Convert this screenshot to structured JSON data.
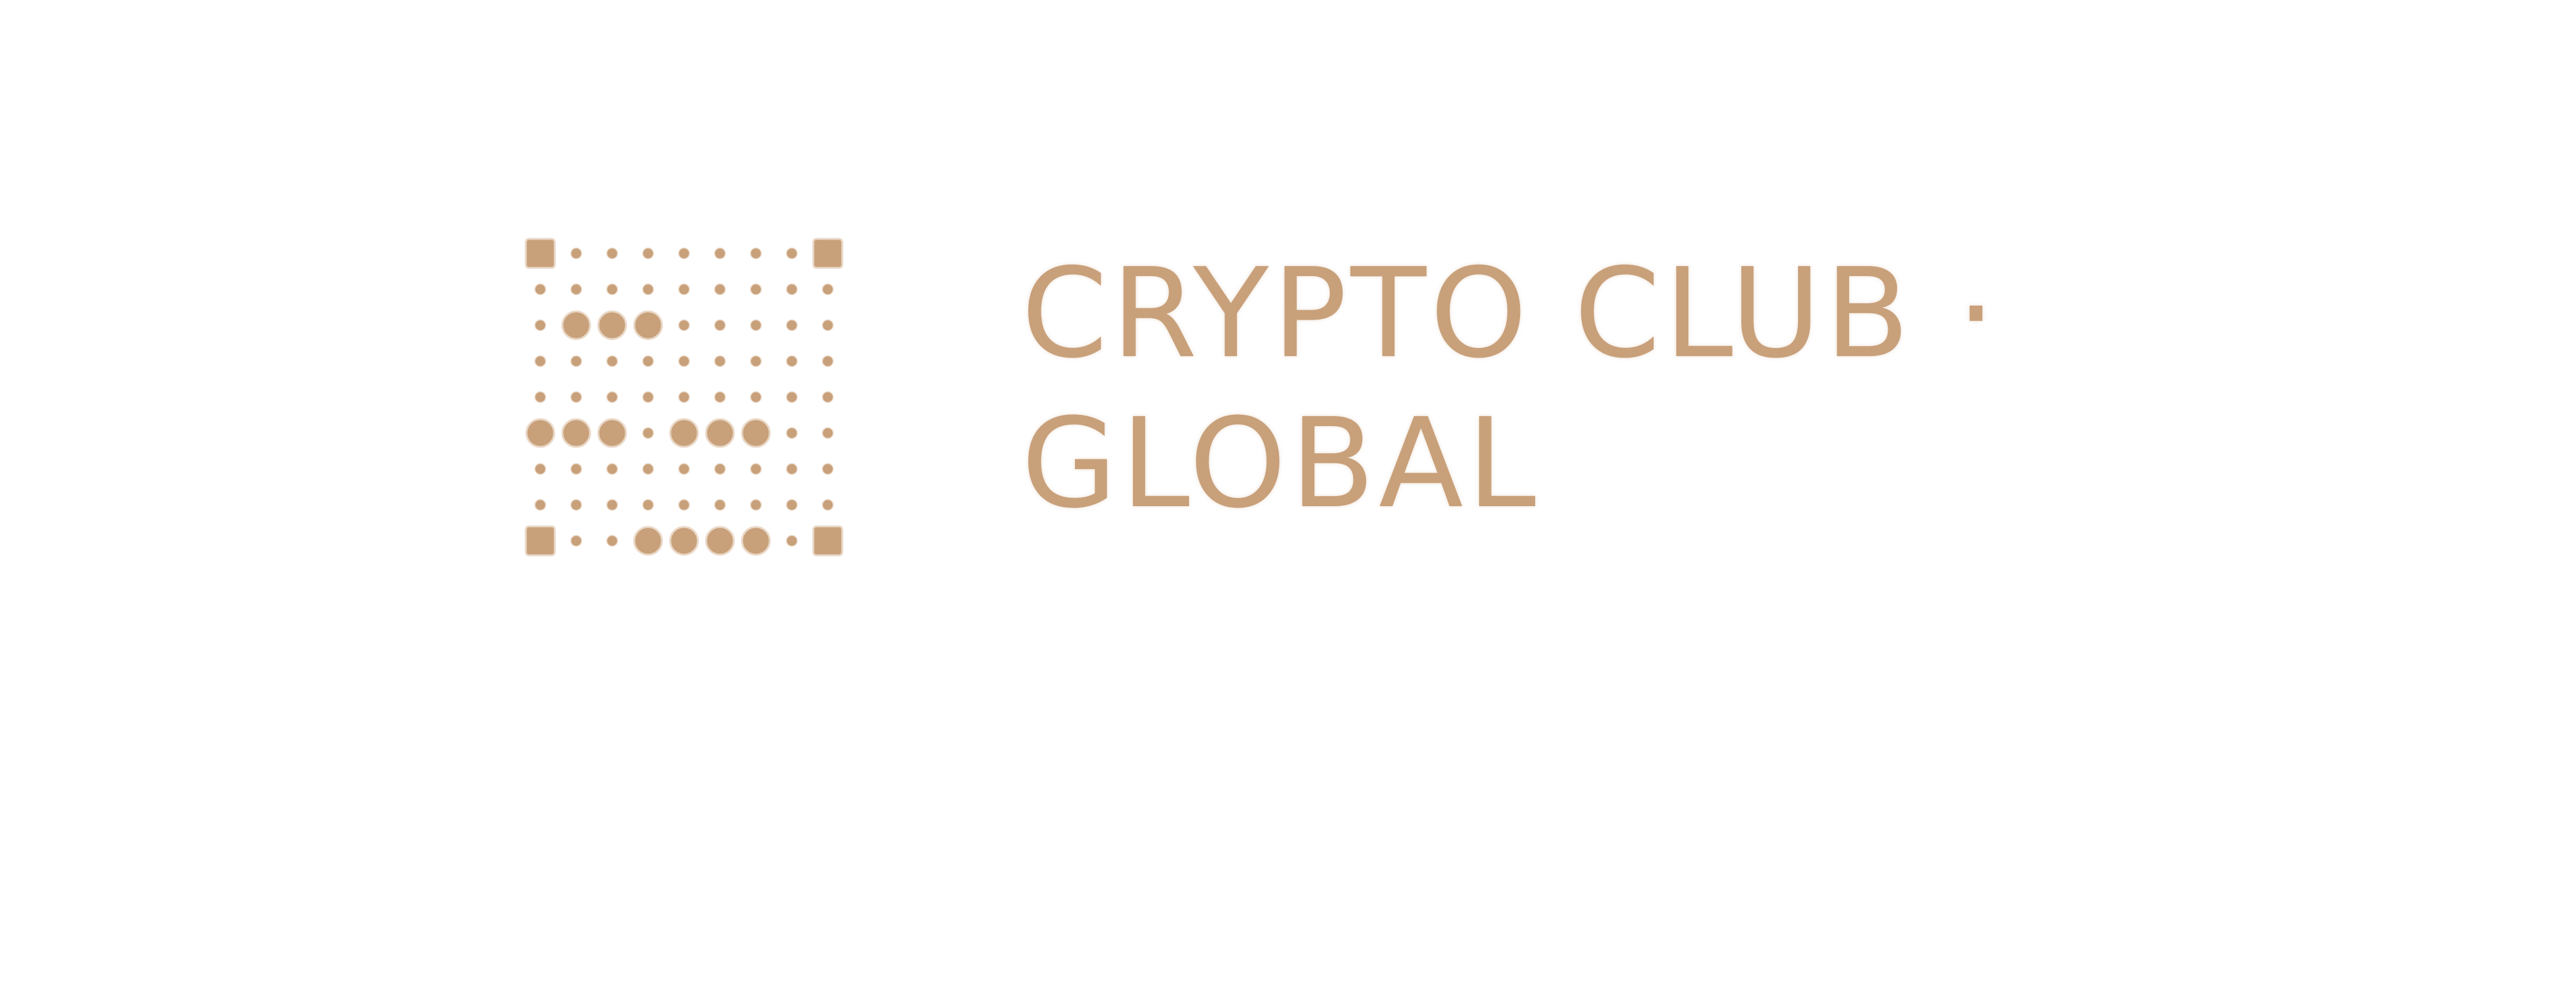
{
  "brand": {
    "wordmark_line_1": "CRYPTO CLUB ·",
    "wordmark_line_2": "GLOBAL",
    "color": "#c8a07a"
  },
  "logo_mark": {
    "icon": "dot-grid-logo-icon",
    "grid_size": 9
  }
}
